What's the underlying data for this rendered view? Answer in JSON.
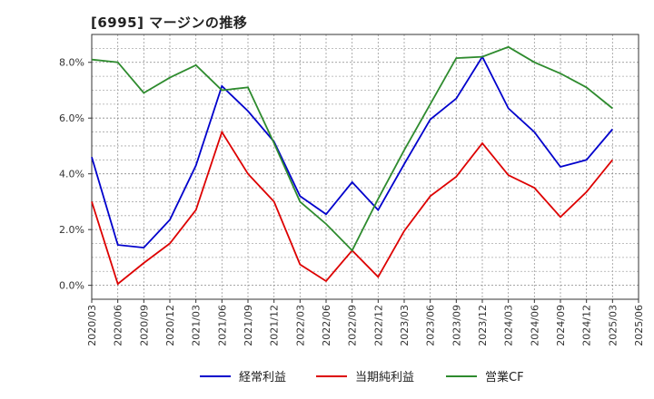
{
  "chart_data": {
    "type": "line",
    "title": "[6995]  マージンの推移",
    "categories": [
      "2020/03",
      "2020/06",
      "2020/09",
      "2020/12",
      "2021/03",
      "2021/06",
      "2021/09",
      "2021/12",
      "2022/03",
      "2022/06",
      "2022/09",
      "2022/12",
      "2023/03",
      "2023/06",
      "2023/09",
      "2023/12",
      "2024/03",
      "2024/06",
      "2024/09",
      "2024/12",
      "2025/03",
      "2025/06"
    ],
    "ylim": [
      -0.5,
      9.0
    ],
    "yticks": [
      0.0,
      2.0,
      4.0,
      6.0,
      8.0
    ],
    "ytick_labels": [
      "0.0%",
      "2.0%",
      "4.0%",
      "6.0%",
      "8.0%"
    ],
    "grid": true,
    "legend_position": "bottom",
    "series": [
      {
        "name": "経常利益",
        "color": "#0000cc",
        "values": [
          4.6,
          1.45,
          1.35,
          2.35,
          4.3,
          7.15,
          6.25,
          5.15,
          3.2,
          2.55,
          3.7,
          2.7,
          4.35,
          5.95,
          6.7,
          8.2,
          6.35,
          5.5,
          4.25,
          4.5,
          5.6,
          null
        ]
      },
      {
        "name": "当期純利益",
        "color": "#dd0000",
        "values": [
          3.0,
          0.05,
          0.8,
          1.5,
          2.7,
          5.5,
          4.0,
          3.0,
          0.75,
          0.15,
          1.25,
          0.3,
          1.95,
          3.2,
          3.9,
          5.1,
          3.95,
          3.5,
          2.45,
          3.35,
          4.5,
          null
        ]
      },
      {
        "name": "営業CF",
        "color": "#2e8b2e",
        "values": [
          8.1,
          8.0,
          6.9,
          7.45,
          7.9,
          7.0,
          7.1,
          5.1,
          3.0,
          2.2,
          1.25,
          3.1,
          4.85,
          6.5,
          8.15,
          8.2,
          8.55,
          8.0,
          7.6,
          7.1,
          6.35,
          null
        ]
      }
    ]
  }
}
